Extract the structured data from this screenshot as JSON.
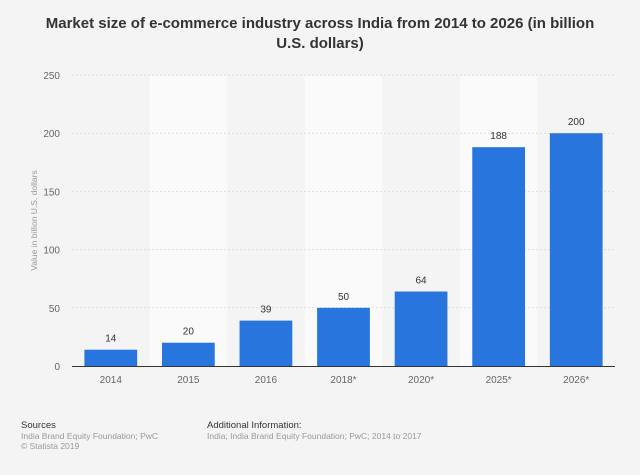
{
  "chart_data": {
    "type": "bar",
    "title": "Market size of e-commerce industry across India from 2014 to 2026 (in billion U.S. dollars)",
    "categories": [
      "2014",
      "2015",
      "2016",
      "2018*",
      "2020*",
      "2025*",
      "2026*"
    ],
    "values": [
      14,
      20,
      39,
      50,
      64,
      188,
      200
    ],
    "xlabel": "",
    "ylabel": "Value in billion U.S. dollars",
    "ylim": [
      0,
      250
    ],
    "yticks": [
      0,
      50,
      100,
      150,
      200,
      250
    ],
    "grid": true,
    "bar_color": "#2876dd"
  },
  "footer": {
    "sources_label": "Sources",
    "sources_text": "India Brand Equity Foundation; PwC",
    "copyright": "© Statista 2019",
    "additional_label": "Additional Information:",
    "additional_text": "India; India Brand Equity Foundation; PwC; 2014 to 2017"
  }
}
